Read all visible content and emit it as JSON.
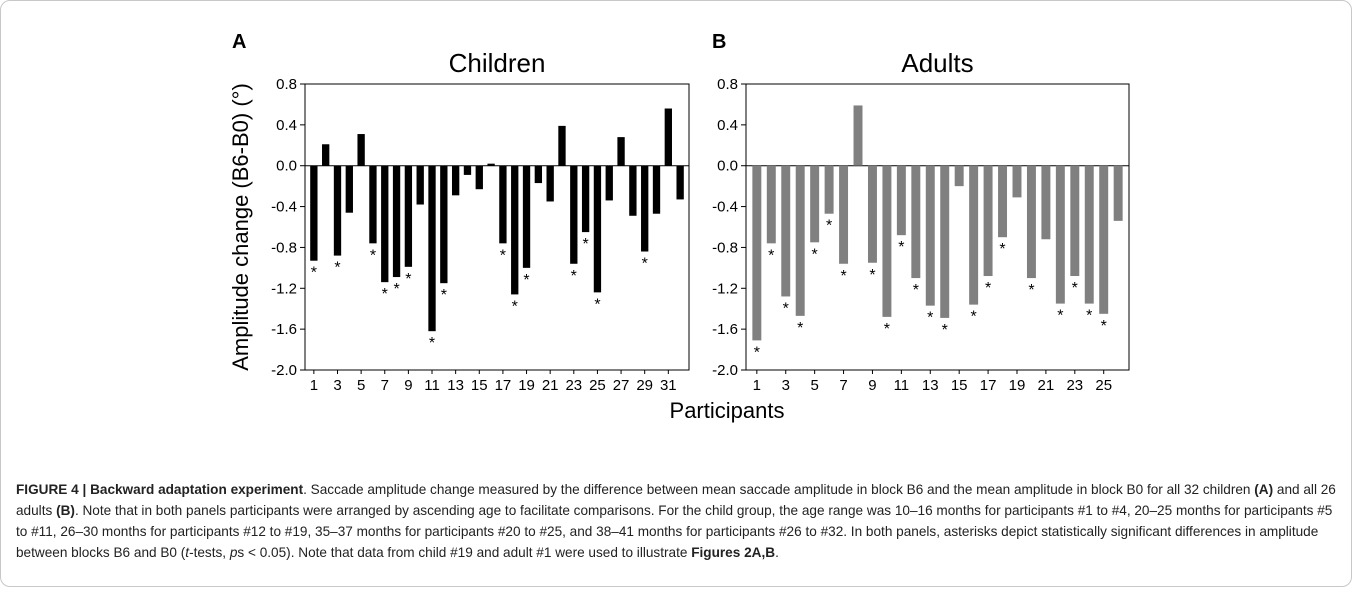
{
  "figure_label": "FIGURE 4 | Backward adaptation experiment",
  "figure_label_pre": "FIGURE 4 | ",
  "figure_label_bold": "Backward adaptation experiment",
  "caption": {
    "p1": ". Saccade amplitude change measured by the difference between mean saccade amplitude in block B6 and the mean amplitude in block B0 for all 32 children ",
    "p2": "(A)",
    "p3": " and all 26 adults ",
    "p4": "(B)",
    "p5": ". Note that in both panels participants were arranged by ascending age to facilitate comparisons. For the child group, the age range was 10–16 months for participants #1 to #4, 20–25 months for participants #5 to #11, 26–30 months for participants #12 to #19, 35–37 months for participants #20 to #25, and 38–41 months for participants #26 to #32. In both panels, asterisks depict statistically significant differences in amplitude between blocks B6 and B0 (",
    "p6": "t",
    "p7": "-tests, ",
    "p8": "p",
    "p9": "s < 0.05). Note that data from child #19 and adult #1 were used to illustrate ",
    "p10": "Figures 2A,B",
    "p11": "."
  },
  "chart_data": [
    {
      "type": "bar",
      "panel_letter": "A",
      "title": "Children",
      "ylabel": "Amplitude change (B6-B0) (°)",
      "xlabel": "Participants",
      "ylim": [
        -2.0,
        0.8
      ],
      "yticks": [
        "0.8",
        "0.4",
        "0.0",
        "-0.4",
        "-0.8",
        "-1.2",
        "-1.6",
        "-2.0"
      ],
      "ytick_values": [
        0.8,
        0.4,
        0.0,
        -0.4,
        -0.8,
        -1.2,
        -1.6,
        -2.0
      ],
      "xtick_labels": [
        "1",
        "3",
        "5",
        "7",
        "9",
        "11",
        "13",
        "15",
        "17",
        "19",
        "21",
        "23",
        "25",
        "27",
        "29",
        "31"
      ],
      "bar_color": "#000000",
      "categories": [
        1,
        2,
        3,
        4,
        5,
        6,
        7,
        8,
        9,
        10,
        11,
        12,
        13,
        14,
        15,
        16,
        17,
        18,
        19,
        20,
        21,
        22,
        23,
        24,
        25,
        26,
        27,
        28,
        29,
        30,
        31,
        32
      ],
      "values": [
        -0.93,
        0.21,
        -0.88,
        -0.46,
        0.31,
        -0.76,
        -1.14,
        -1.09,
        -0.99,
        -0.38,
        -1.62,
        -1.15,
        -0.29,
        -0.09,
        -0.23,
        0.02,
        -0.76,
        -1.26,
        -1.0,
        -0.17,
        -0.35,
        0.39,
        -0.96,
        -0.65,
        -1.24,
        -0.34,
        0.28,
        -0.49,
        -0.84,
        -0.47,
        0.56,
        -0.33
      ],
      "significant": [
        true,
        false,
        true,
        false,
        false,
        true,
        true,
        true,
        true,
        false,
        true,
        true,
        false,
        false,
        false,
        false,
        true,
        true,
        true,
        false,
        false,
        false,
        true,
        true,
        true,
        false,
        false,
        false,
        true,
        false,
        false,
        false
      ],
      "grid": false
    },
    {
      "type": "bar",
      "panel_letter": "B",
      "title": "Adults",
      "ylabel": "",
      "xlabel": "Participants",
      "ylim": [
        -2.0,
        0.8
      ],
      "yticks": [
        "0.8",
        "0.4",
        "0.0",
        "-0.4",
        "-0.8",
        "-1.2",
        "-1.6",
        "-2.0"
      ],
      "ytick_values": [
        0.8,
        0.4,
        0.0,
        -0.4,
        -0.8,
        -1.2,
        -1.6,
        -2.0
      ],
      "xtick_labels": [
        "1",
        "3",
        "5",
        "7",
        "9",
        "11",
        "13",
        "15",
        "17",
        "19",
        "21",
        "23",
        "25"
      ],
      "bar_color": "#808080",
      "categories": [
        1,
        2,
        3,
        4,
        5,
        6,
        7,
        8,
        9,
        10,
        11,
        12,
        13,
        14,
        15,
        16,
        17,
        18,
        19,
        20,
        21,
        22,
        23,
        24,
        25,
        26
      ],
      "values": [
        -1.71,
        -0.76,
        -1.28,
        -1.47,
        -0.75,
        -0.47,
        -0.96,
        0.59,
        -0.95,
        -1.48,
        -0.68,
        -1.1,
        -1.37,
        -1.49,
        -0.2,
        -1.36,
        -1.08,
        -0.7,
        -0.31,
        -1.1,
        -0.72,
        -1.35,
        -1.08,
        -1.35,
        -1.45,
        -0.54
      ],
      "significant": [
        true,
        true,
        true,
        true,
        true,
        true,
        true,
        false,
        true,
        true,
        true,
        true,
        true,
        true,
        false,
        true,
        true,
        true,
        false,
        true,
        false,
        true,
        true,
        true,
        true,
        false
      ],
      "grid": false
    }
  ]
}
